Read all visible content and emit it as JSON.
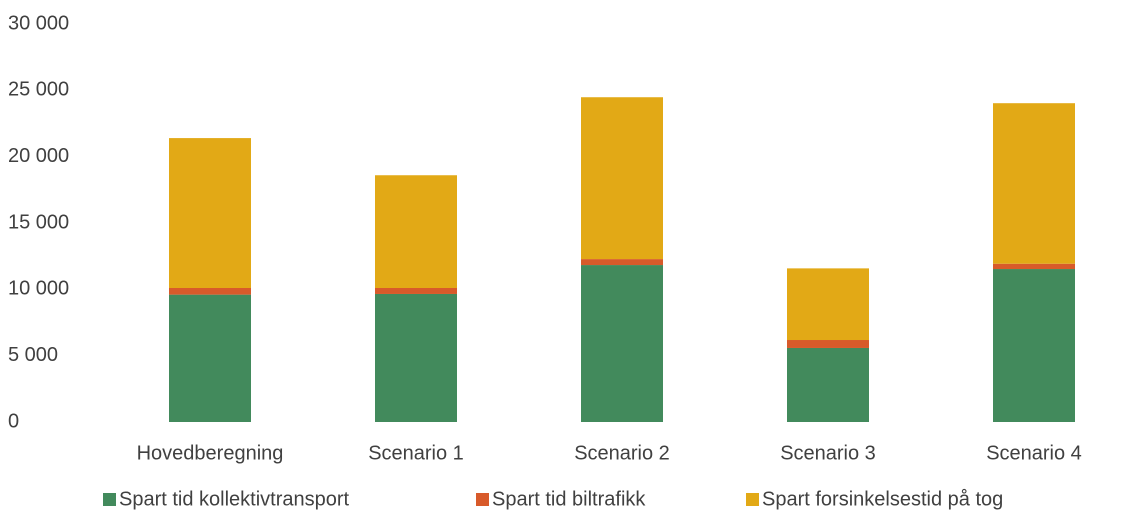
{
  "chart_data": {
    "type": "stacked_bar",
    "categories": [
      "Hovedberegning",
      "Scenario 1",
      "Scenario 2",
      "Scenario 3",
      "Scenario 4"
    ],
    "series": [
      {
        "name": "Spart tid kollektivtransport",
        "color": "#428a5c",
        "values": [
          9600,
          9650,
          11830,
          5580,
          11530
        ]
      },
      {
        "name": "Spart tid biltrafikk",
        "color": "#d85a2a",
        "values": [
          500,
          450,
          450,
          600,
          400
        ]
      },
      {
        "name": "Spart forsinkelsestid på tog",
        "color": "#e2a916",
        "values": [
          11300,
          8500,
          12200,
          5400,
          12100
        ]
      }
    ],
    "ylim": [
      0,
      30000
    ],
    "yticks": [
      0,
      {
        "value": 5000,
        "label": "5 000"
      },
      {
        "value": 10000,
        "label": "10 000"
      },
      {
        "value": 15000,
        "label": "15 000"
      },
      {
        "value": 20000,
        "label": "20 000"
      },
      {
        "value": 25000,
        "label": "25 000"
      },
      {
        "value": 30000,
        "label": "30 000"
      }
    ],
    "legend": "bottom"
  }
}
